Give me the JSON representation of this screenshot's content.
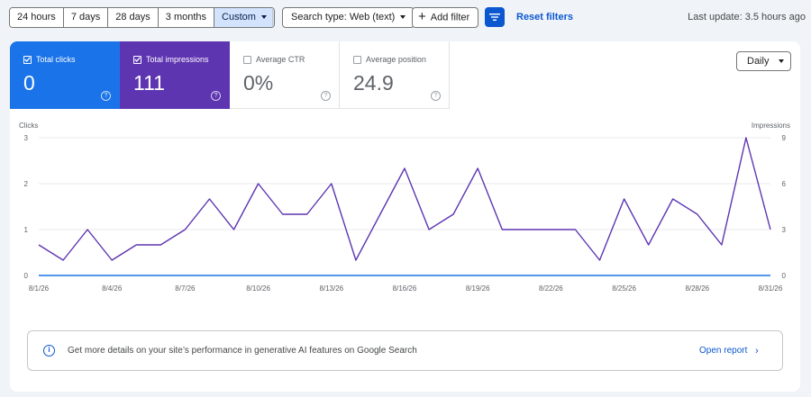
{
  "toolbar": {
    "ranges": [
      "24 hours",
      "7 days",
      "28 days",
      "3 months",
      "Custom"
    ],
    "search_type": "Search type: Web (text)",
    "add_filter": "Add filter",
    "reset_filters": "Reset filters",
    "last_update": "Last update: 3.5 hours ago",
    "icons": {
      "add": "plus-icon",
      "filter": "filter-icon",
      "dropdown": "caret-down-icon"
    }
  },
  "metrics": [
    {
      "label": "Total clicks",
      "value": "0",
      "checked": true,
      "color": "#1a73e8"
    },
    {
      "label": "Total impressions",
      "value": "111",
      "checked": true,
      "color": "#5e35b1"
    },
    {
      "label": "Average CTR",
      "value": "0%",
      "checked": false
    },
    {
      "label": "Average position",
      "value": "24.9",
      "checked": false
    }
  ],
  "granularity": "Daily",
  "chart_data": {
    "type": "line",
    "left_axis_label": "Clicks",
    "right_axis_label": "Impressions",
    "left_ticks": [
      "0",
      "1",
      "2",
      "3"
    ],
    "right_ticks": [
      "0",
      "3",
      "6",
      "9"
    ],
    "y_left_lim": [
      0,
      3
    ],
    "y_right_lim": [
      0,
      9
    ],
    "x": [
      "8/1/26",
      "8/2/26",
      "8/3/26",
      "8/4/26",
      "8/5/26",
      "8/6/26",
      "8/7/26",
      "8/8/26",
      "8/9/26",
      "8/10/26",
      "8/11/26",
      "8/12/26",
      "8/13/26",
      "8/14/26",
      "8/15/26",
      "8/16/26",
      "8/17/26",
      "8/18/26",
      "8/19/26",
      "8/20/26",
      "8/21/26",
      "8/22/26",
      "8/23/26",
      "8/24/26",
      "8/25/26",
      "8/26/26",
      "8/27/26",
      "8/28/26",
      "8/29/26",
      "8/30/26",
      "8/31/26"
    ],
    "x_tick_labels": [
      "8/1/26",
      "8/4/26",
      "8/7/26",
      "8/10/26",
      "8/13/26",
      "8/16/26",
      "8/19/26",
      "8/22/26",
      "8/25/26",
      "8/28/26",
      "8/31/26"
    ],
    "grid": true,
    "series": [
      {
        "axis": "left",
        "color": "#1a73e8",
        "values": [
          0,
          0,
          0,
          0,
          0,
          0,
          0,
          0,
          0,
          0,
          0,
          0,
          0,
          0,
          0,
          0,
          0,
          0,
          0,
          0,
          0,
          0,
          0,
          0,
          0,
          0,
          0,
          0,
          0,
          0,
          0
        ]
      },
      {
        "axis": "right",
        "color": "#5e35b1",
        "values": [
          2,
          1,
          3,
          1,
          2,
          2,
          3,
          5,
          3,
          6,
          4,
          4,
          6,
          1,
          4,
          7,
          3,
          4,
          7,
          3,
          3,
          3,
          3,
          1,
          5,
          2,
          5,
          4,
          2,
          9,
          3
        ]
      }
    ]
  },
  "banner": {
    "text": "Get more details on your site’s performance in generative AI features on Google Search",
    "link": "Open report",
    "icon": "info-icon"
  }
}
